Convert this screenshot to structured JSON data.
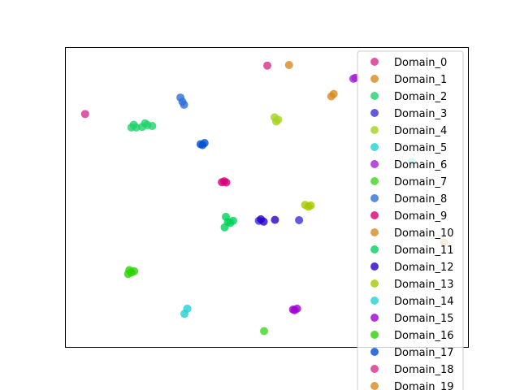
{
  "chart_data": {
    "type": "scatter",
    "title": "",
    "xlabel": "",
    "ylabel": "",
    "grid": false,
    "axis_ticks": false,
    "xlim": [
      0,
      100
    ],
    "ylim": [
      0,
      100
    ],
    "legend_position": "upper-right",
    "series": [
      {
        "name": "Domain_0",
        "color": "#d62f8c",
        "points": [
          [
            50.1,
            94.1
          ],
          [
            4.8,
            77.9
          ]
        ]
      },
      {
        "name": "Domain_1",
        "color": "#d98a1f",
        "points": [
          [
            55.5,
            94.3
          ],
          [
            66.0,
            83.8
          ],
          [
            66.6,
            84.6
          ]
        ]
      },
      {
        "name": "Domain_2",
        "color": "#1fd26a",
        "points": [
          [
            16.3,
            73.4
          ],
          [
            17.5,
            73.4
          ],
          [
            19.0,
            73.6
          ],
          [
            20.3,
            74.2
          ],
          [
            21.5,
            73.9
          ],
          [
            16.9,
            74.3
          ],
          [
            19.7,
            74.8
          ]
        ]
      },
      {
        "name": "Domain_3",
        "color": "#3b2fd6",
        "points": [
          [
            48.0,
            42.2
          ],
          [
            58.0,
            42.4
          ]
        ]
      },
      {
        "name": "Domain_4",
        "color": "#a6d21f",
        "points": [
          [
            51.9,
            76.8
          ],
          [
            52.3,
            75.4
          ],
          [
            52.8,
            76.0
          ]
        ]
      },
      {
        "name": "Domain_5",
        "color": "#1fd2d2",
        "points": [
          [
            29.5,
            11.1
          ],
          [
            30.2,
            12.8
          ]
        ]
      },
      {
        "name": "Domain_6",
        "color": "#a61fd6",
        "points": [
          [
            72.0,
            90.0
          ],
          [
            71.5,
            89.7
          ]
        ]
      },
      {
        "name": "Domain_7",
        "color": "#3fd61f",
        "points": [
          [
            49.3,
            5.3
          ]
        ]
      },
      {
        "name": "Domain_8",
        "color": "#2f6fd6",
        "points": [
          [
            28.5,
            83.4
          ],
          [
            29.0,
            82.0
          ],
          [
            29.4,
            81.0
          ]
        ]
      },
      {
        "name": "Domain_9",
        "color": "#d6007a",
        "points": [
          [
            38.8,
            55.1
          ],
          [
            39.4,
            55.4
          ],
          [
            39.9,
            55.0
          ]
        ]
      },
      {
        "name": "Domain_10",
        "color": "#d98a1f",
        "points": [
          [
            94.0,
            35.0
          ]
        ]
      },
      {
        "name": "Domain_11",
        "color": "#00d25a",
        "points": [
          [
            39.8,
            43.5
          ],
          [
            40.9,
            41.5
          ],
          [
            41.6,
            42.2
          ],
          [
            40.3,
            41.8
          ],
          [
            39.5,
            40.0
          ]
        ]
      },
      {
        "name": "Domain_12",
        "color": "#2a00c8",
        "points": [
          [
            48.5,
            42.7
          ],
          [
            49.2,
            41.9
          ],
          [
            52.0,
            42.5
          ]
        ]
      },
      {
        "name": "Domain_13",
        "color": "#a6c800",
        "points": [
          [
            59.5,
            47.5
          ],
          [
            60.3,
            46.9
          ],
          [
            60.9,
            47.3
          ]
        ]
      },
      {
        "name": "Domain_14",
        "color": "#1fd2d2",
        "points": [
          [
            86.0,
            62.0
          ]
        ]
      },
      {
        "name": "Domain_15",
        "color": "#a000d2",
        "points": [
          [
            56.5,
            12.5
          ],
          [
            57.5,
            12.8
          ],
          [
            56.9,
            12.3
          ]
        ]
      },
      {
        "name": "Domain_16",
        "color": "#2ad200",
        "points": [
          [
            15.5,
            24.4
          ],
          [
            16.3,
            24.9
          ],
          [
            17.0,
            25.3
          ],
          [
            15.8,
            25.7
          ]
        ]
      },
      {
        "name": "Domain_17",
        "color": "#0050d0",
        "points": [
          [
            33.5,
            67.8
          ],
          [
            34.5,
            68.2
          ],
          [
            34.0,
            67.5
          ]
        ]
      },
      {
        "name": "Domain_18",
        "color": "#d62f8c",
        "points": []
      },
      {
        "name": "Domain_19",
        "color": "#d98a1f",
        "points": []
      }
    ]
  }
}
